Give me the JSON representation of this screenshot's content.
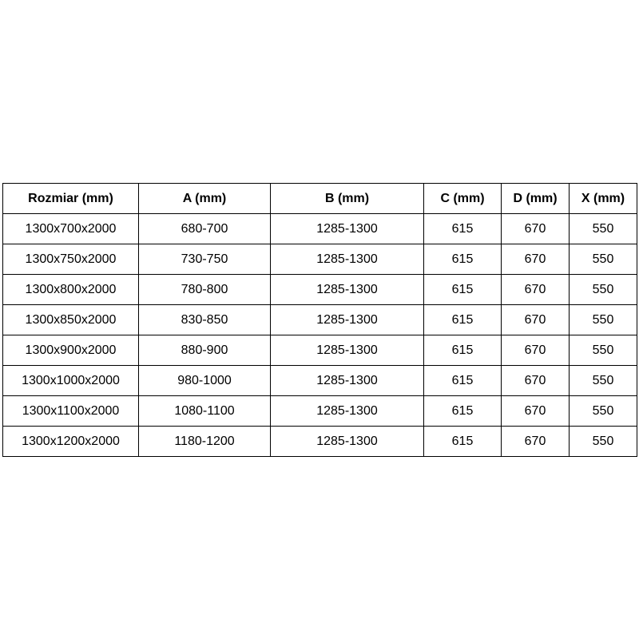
{
  "table": {
    "headers": [
      "Rozmiar (mm)",
      "A (mm)",
      "B (mm)",
      "C (mm)",
      "D (mm)",
      "X (mm)"
    ],
    "rows": [
      [
        "1300x700x2000",
        "680-700",
        "1285-1300",
        "615",
        "670",
        "550"
      ],
      [
        "1300x750x2000",
        "730-750",
        "1285-1300",
        "615",
        "670",
        "550"
      ],
      [
        "1300x800x2000",
        "780-800",
        "1285-1300",
        "615",
        "670",
        "550"
      ],
      [
        "1300x850x2000",
        "830-850",
        "1285-1300",
        "615",
        "670",
        "550"
      ],
      [
        "1300x900x2000",
        "880-900",
        "1285-1300",
        "615",
        "670",
        "550"
      ],
      [
        "1300x1000x2000",
        "980-1000",
        "1285-1300",
        "615",
        "670",
        "550"
      ],
      [
        "1300x1100x2000",
        "1080-1100",
        "1285-1300",
        "615",
        "670",
        "550"
      ],
      [
        "1300x1200x2000",
        "1180-1200",
        "1285-1300",
        "615",
        "670",
        "550"
      ]
    ]
  }
}
